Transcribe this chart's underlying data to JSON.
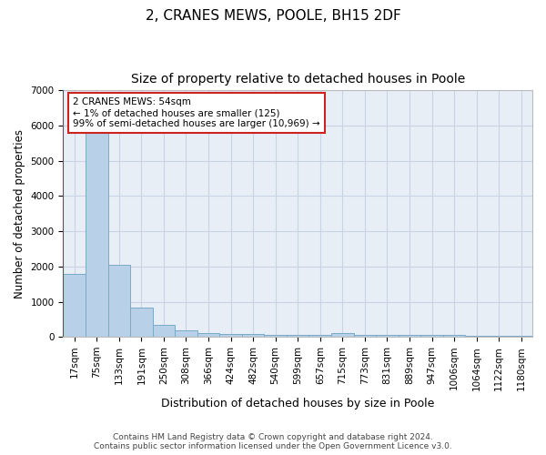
{
  "title": "2, CRANES MEWS, POOLE, BH15 2DF",
  "subtitle": "Size of property relative to detached houses in Poole",
  "xlabel": "Distribution of detached houses by size in Poole",
  "ylabel": "Number of detached properties",
  "categories": [
    "17sqm",
    "75sqm",
    "133sqm",
    "191sqm",
    "250sqm",
    "308sqm",
    "366sqm",
    "424sqm",
    "482sqm",
    "540sqm",
    "599sqm",
    "657sqm",
    "715sqm",
    "773sqm",
    "831sqm",
    "889sqm",
    "947sqm",
    "1006sqm",
    "1064sqm",
    "1122sqm",
    "1180sqm"
  ],
  "values": [
    1780,
    5800,
    2050,
    840,
    330,
    190,
    110,
    90,
    85,
    60,
    55,
    55,
    110,
    55,
    50,
    50,
    45,
    45,
    40,
    40,
    40
  ],
  "bar_color": "#b8d0e8",
  "bar_edge_color": "#7aaac8",
  "grid_color": "#c8d4e4",
  "background_color": "#e8eef6",
  "vline_color": "#cc2222",
  "annotation_text": "2 CRANES MEWS: 54sqm\n← 1% of detached houses are smaller (125)\n99% of semi-detached houses are larger (10,969) →",
  "annotation_box_color": "#ffffff",
  "annotation_box_edge": "#cc2222",
  "ylim": [
    0,
    7000
  ],
  "yticks": [
    0,
    1000,
    2000,
    3000,
    4000,
    5000,
    6000,
    7000
  ],
  "footer": "Contains HM Land Registry data © Crown copyright and database right 2024.\nContains public sector information licensed under the Open Government Licence v3.0.",
  "title_fontsize": 11,
  "subtitle_fontsize": 10,
  "xlabel_fontsize": 9,
  "ylabel_fontsize": 8.5,
  "tick_fontsize": 7.5,
  "footer_fontsize": 6.5
}
